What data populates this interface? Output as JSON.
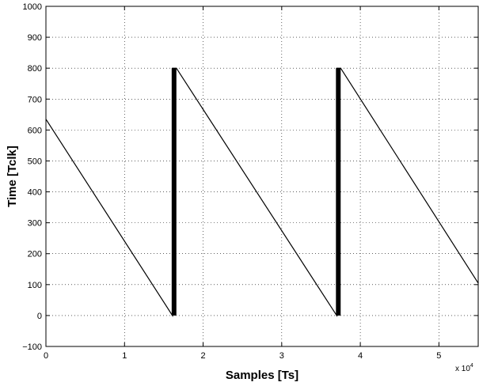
{
  "chart_data": {
    "type": "line",
    "xlabel": "Samples [Ts]",
    "ylabel": "Time [Tclk]",
    "x_multiplier_label": {
      "base": "x 10",
      "exponent": "4"
    },
    "xlim": [
      0,
      5.5
    ],
    "ylim": [
      -100,
      1000
    ],
    "x_ticks": [
      0,
      1,
      2,
      3,
      4,
      5
    ],
    "y_ticks": [
      -100,
      0,
      100,
      200,
      300,
      400,
      500,
      600,
      700,
      800,
      900,
      1000
    ],
    "x_tick_labels": [
      "0",
      "1",
      "2",
      "3",
      "4",
      "5"
    ],
    "y_tick_labels": [
      "−100",
      "0",
      "100",
      "200",
      "300",
      "400",
      "500",
      "600",
      "700",
      "800",
      "900",
      "1000"
    ],
    "grid": true,
    "grid_style": "dotted",
    "line_color": "#000000",
    "series": [
      {
        "x": [
          0,
          1.61,
          1.61,
          1.66,
          1.66,
          3.7,
          3.7,
          3.75,
          3.75,
          5.5
        ],
        "y": [
          635,
          0,
          800,
          800,
          800,
          0,
          800,
          800,
          800,
          105
        ]
      }
    ],
    "thick_bands": [
      {
        "x_start": 1.6,
        "x_end": 1.66,
        "y_min": 0,
        "y_max": 800
      },
      {
        "x_start": 3.69,
        "x_end": 3.75,
        "y_min": 0,
        "y_max": 800
      }
    ]
  }
}
